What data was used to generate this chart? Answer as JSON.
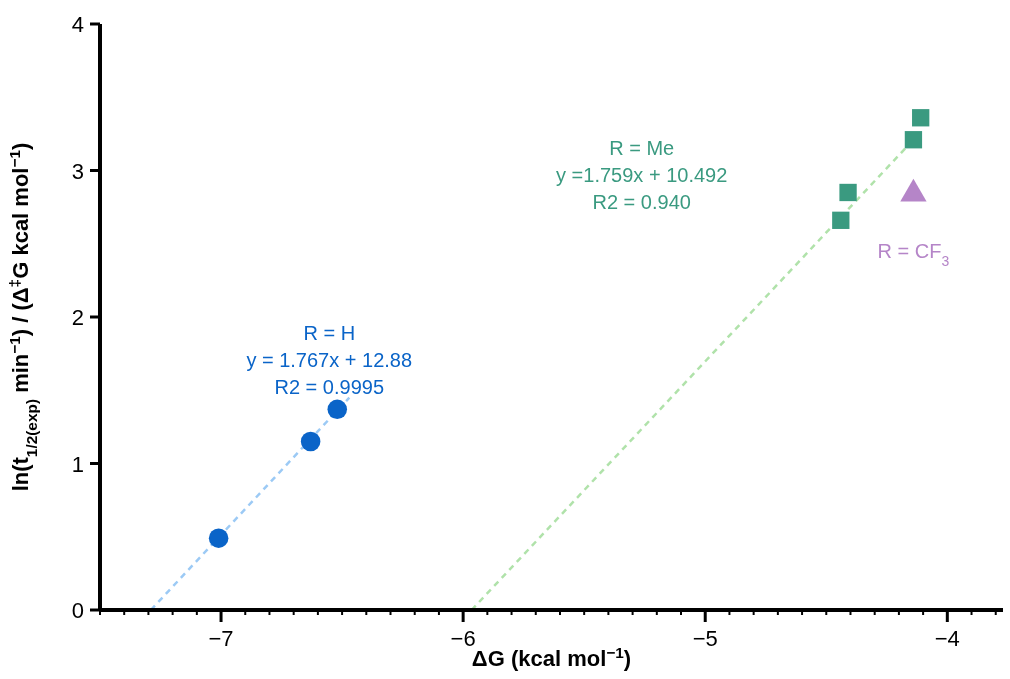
{
  "chart_data": {
    "type": "scatter",
    "xlabel": "ΔG (kcal mol$^{−1}$)",
    "ylabel": "ln(t$_{1/2(exp)}$  min$^{−1}$) / (Δ$^{‡}$G  kcal mol$^{−1}$)",
    "xlim": [
      -7.5,
      -3.77
    ],
    "ylim": [
      0,
      4
    ],
    "xticks": [
      {
        "value": -7.5,
        "label": null
      },
      {
        "value": -7.4,
        "label": null
      },
      {
        "value": -7.3,
        "label": null
      },
      {
        "value": -7.2,
        "label": null
      },
      {
        "value": -7.1,
        "label": null
      },
      -7,
      {
        "value": -6.9,
        "label": null
      },
      {
        "value": -6.8,
        "label": null
      },
      {
        "value": -6.7,
        "label": null
      },
      {
        "value": -6.6,
        "label": null
      },
      {
        "value": -6.5,
        "label": null
      },
      {
        "value": -6.4,
        "label": null
      },
      {
        "value": -6.3,
        "label": null
      },
      {
        "value": -6.2,
        "label": null
      },
      {
        "value": -6.1,
        "label": null
      },
      -6,
      {
        "value": -5.9,
        "label": null
      },
      {
        "value": -5.8,
        "label": null
      },
      {
        "value": -5.7,
        "label": null
      },
      {
        "value": -5.6,
        "label": null
      },
      {
        "value": -5.5,
        "label": null
      },
      {
        "value": -5.4,
        "label": null
      },
      {
        "value": -5.3,
        "label": null
      },
      {
        "value": -5.2,
        "label": null
      },
      {
        "value": -5.1,
        "label": null
      },
      -5,
      {
        "value": -4.9,
        "label": null
      },
      {
        "value": -4.8,
        "label": null
      },
      {
        "value": -4.7,
        "label": null
      },
      {
        "value": -4.6,
        "label": null
      },
      {
        "value": -4.5,
        "label": null
      },
      {
        "value": -4.4,
        "label": null
      },
      {
        "value": -4.3,
        "label": null
      },
      {
        "value": -4.2,
        "label": null
      },
      {
        "value": -4.1,
        "label": null
      },
      -4,
      {
        "value": -3.9,
        "label": null
      },
      {
        "value": -3.8,
        "label": null
      }
    ],
    "yticks": [
      0,
      1,
      2,
      3,
      4
    ],
    "grid": false,
    "series": [
      {
        "type": "scatter",
        "marker": "circle",
        "color": "#0a64c8",
        "x": [
          -7.01,
          -6.63,
          -6.52
        ],
        "values": [
          0.49,
          1.15,
          1.37
        ]
      },
      {
        "type": "scatter",
        "marker": "square",
        "color": "#3a9a80",
        "x": [
          -4.44,
          -4.41,
          -4.14,
          -4.11
        ],
        "values": [
          2.66,
          2.85,
          3.21,
          3.36
        ]
      },
      {
        "type": "scatter",
        "marker": "triangle",
        "color": "#b585c8",
        "x": [
          -4.14
        ],
        "values": [
          2.84
        ]
      },
      {
        "type": "line",
        "line_style": "dashed",
        "color": "#9ccaf5",
        "x": [
          -7.29,
          -6.47
        ],
        "values": [
          0,
          1.45
        ]
      },
      {
        "type": "line",
        "line_style": "dashed",
        "color": "#b0e2aa",
        "x": [
          -5.965,
          -4.1
        ],
        "values": [
          0,
          3.28
        ]
      }
    ],
    "annotations": [
      "R = H\ny = 1.767x + 12.88\nR2 = 0.9995",
      "R = Me\ny =1.759x + 10.492\nR2 = 0.940",
      "R = CF$_{3}$"
    ]
  }
}
